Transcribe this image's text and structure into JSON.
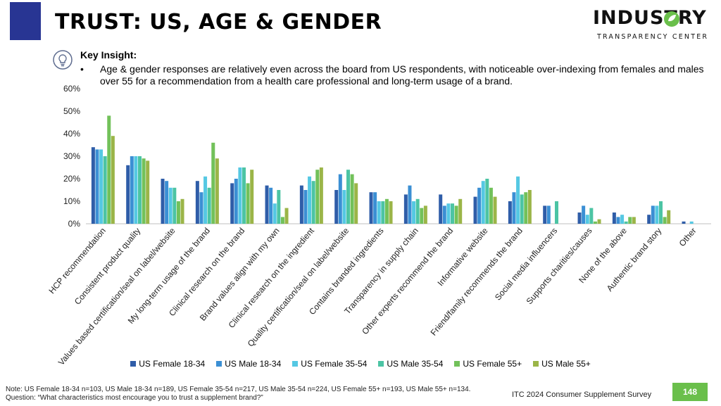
{
  "colors": {
    "title_accent": "#283593",
    "logo_green": "#6abf4b",
    "page_badge": "#6abf4b",
    "series": [
      "#2f5da8",
      "#3b8fd4",
      "#55c8e3",
      "#4cc4a4",
      "#72c15a",
      "#9bb548"
    ]
  },
  "slide": {
    "title": "TRUST: US, AGE & GENDER",
    "logo_word": "INDUSTRY",
    "logo_sub": "TRANSPARENCY CENTER",
    "icon": "lightbulb-icon",
    "insight_heading": "Key Insight:",
    "insight_bullet": "•",
    "insight_text": "Age & gender responses are relatively even across the board from US respondents, with noticeable over-indexing from females and males over 55 for a recommendation from a health care professional and long-term usage of a brand.",
    "note": "Note: US Female 18-34 n=103, US Male 18-34 n=189, US Female 35-54 n=217, US Male 35-54 n=224, US Female 55+ n=193, US Male 55+ n=134. Question: “What characteristics most encourage you to trust a supplement brand?”",
    "footer_survey": "ITC 2024 Consumer Supplement Survey",
    "page_number": "148"
  },
  "chart_data": {
    "type": "bar",
    "title": "",
    "xlabel": "",
    "ylabel": "",
    "ylim": [
      0,
      60
    ],
    "yticks": [
      "0%",
      "10%",
      "20%",
      "30%",
      "40%",
      "50%",
      "60%"
    ],
    "grid": false,
    "legend_position": "bottom",
    "categories": [
      "HCP recommendation",
      "Consistent product quality",
      "Values based certification/seal on label/website",
      "My long-term usage of the brand",
      "Clinical research on the brand",
      "Brand values align with my own",
      "Clinical research on the ingredient",
      "Quality certification/seal on label/website",
      "Contains branded ingredients",
      "Transparency in supply chain",
      "Other experts recommend the brand",
      "Informative website",
      "Friend/family recommends the brand",
      "Social media influencers",
      "Supports charities/causes",
      "None of the above",
      "Authentic brand story",
      "Other"
    ],
    "series": [
      {
        "name": "US Female 18-34",
        "values": [
          34,
          26,
          20,
          19,
          18,
          17,
          17,
          15,
          14,
          13,
          13,
          12,
          10,
          8,
          5,
          5,
          4,
          1
        ]
      },
      {
        "name": "US Male 18-34",
        "values": [
          33,
          30,
          19,
          14,
          20,
          16,
          15,
          22,
          14,
          17,
          8,
          16,
          14,
          8,
          8,
          3,
          8,
          0
        ]
      },
      {
        "name": "US Female 35-54",
        "values": [
          33,
          30,
          16,
          21,
          25,
          9,
          21,
          15,
          10,
          10,
          9,
          19,
          21,
          0,
          4,
          4,
          8,
          1
        ]
      },
      {
        "name": "US Male 35-54",
        "values": [
          30,
          30,
          16,
          16,
          25,
          15,
          19,
          24,
          10,
          11,
          9,
          20,
          13,
          10,
          7,
          1,
          10,
          0
        ]
      },
      {
        "name": "US Female 55+",
        "values": [
          48,
          29,
          10,
          36,
          18,
          3,
          24,
          22,
          11,
          7,
          8,
          16,
          14,
          0,
          1,
          3,
          3,
          0
        ]
      },
      {
        "name": "US Male 55+",
        "values": [
          39,
          28,
          11,
          29,
          24,
          7,
          25,
          18,
          10,
          8,
          11,
          12,
          15,
          0,
          2,
          3,
          6,
          0
        ]
      }
    ]
  }
}
